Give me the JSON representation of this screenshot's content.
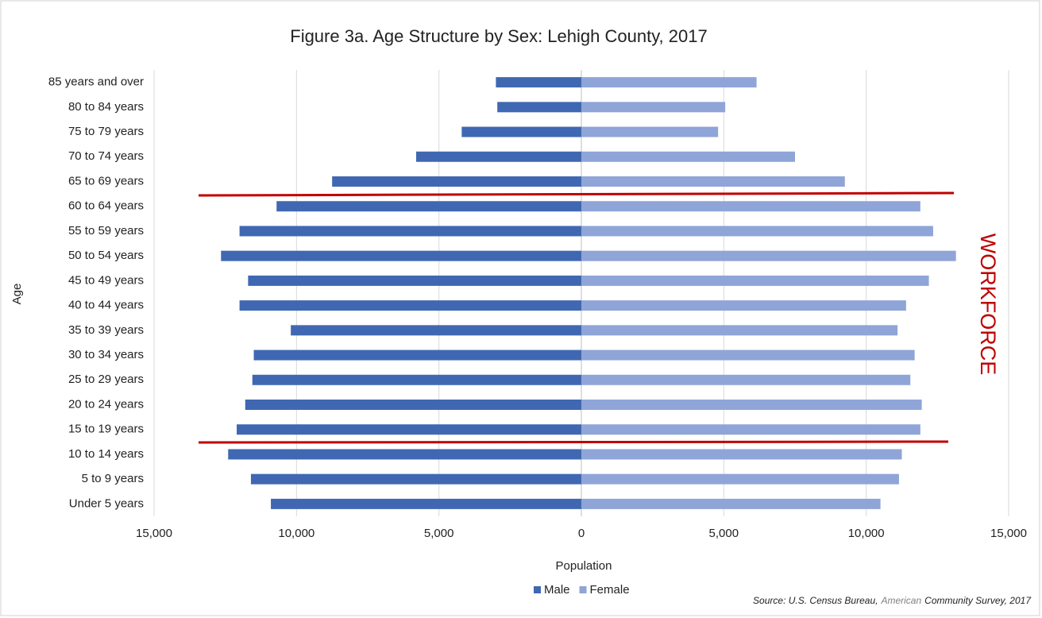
{
  "chart_data": {
    "type": "bar",
    "orientation": "horizontal",
    "title": "Figure 3a. Age Structure by Sex: Lehigh County, 2017",
    "xlabel": "Population",
    "ylabel": "Age",
    "categories": [
      "85 years and over",
      "80 to 84 years",
      "75 to 79 years",
      "70 to 74 years",
      "65 to 69 years",
      "60 to 64 years",
      "55 to 59 years",
      "50 to 54 years",
      "45 to 49 years",
      "40 to 44 years",
      "35 to 39 years",
      "30 to 34 years",
      "25 to 29 years",
      "20 to 24 years",
      "15 to 19 years",
      "10 to 14 years",
      "5 to 9 years",
      "Under 5 years"
    ],
    "series": [
      {
        "name": "Male",
        "color": "#4068b2",
        "values": [
          -3000,
          -2950,
          -4200,
          -5800,
          -8750,
          -10700,
          -12000,
          -12650,
          -11700,
          -12000,
          -10200,
          -11500,
          -11550,
          -11800,
          -12100,
          -12400,
          -11600,
          -10900
        ]
      },
      {
        "name": "Female",
        "color": "#8fa5d8",
        "values": [
          6150,
          5050,
          4800,
          7500,
          9250,
          11900,
          12350,
          13150,
          12200,
          11400,
          11100,
          11700,
          11550,
          11950,
          11900,
          11250,
          11150,
          10500
        ]
      }
    ],
    "xlim": [
      -15000,
      15000
    ],
    "xticks": [
      {
        "value": -15000,
        "label": "15,000"
      },
      {
        "value": -10000,
        "label": "10,000"
      },
      {
        "value": -5000,
        "label": "5,000"
      },
      0,
      {
        "value": 5000,
        "label": "5,000"
      },
      {
        "value": 10000,
        "label": "10,000"
      },
      {
        "value": 15000,
        "label": "15,000"
      }
    ],
    "grid": true,
    "legend": "bottom",
    "annotation": "WORKFORCE",
    "source": [
      "Source: U.S. Census Bureau,",
      "American",
      "Community Survey, 2017"
    ]
  }
}
